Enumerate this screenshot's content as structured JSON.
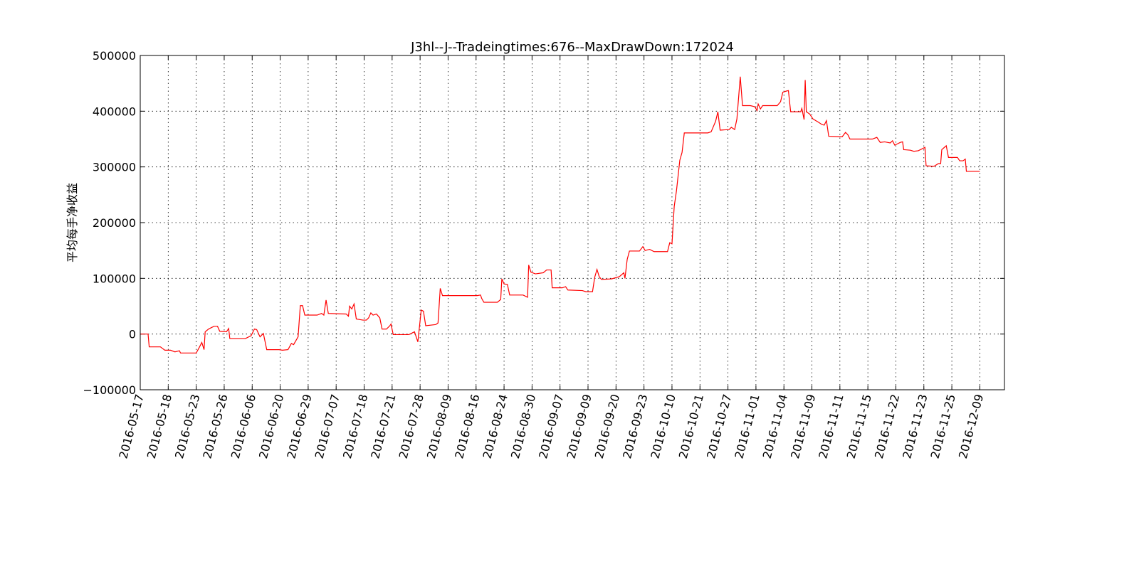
{
  "chart_data": {
    "type": "line",
    "title": "J3hl--J--Tradeingtimes:676--MaxDrawDown:172024",
    "y_label": "平均每手净收益",
    "xlim": [
      0,
      772
    ],
    "ylim": [
      -100000,
      500000
    ],
    "yticks": [
      {
        "value": -100000,
        "label": "−100000"
      },
      0,
      100000,
      200000,
      300000,
      400000,
      500000
    ],
    "xticks": [
      {
        "value": 0,
        "label": "2016-05-17"
      },
      {
        "value": 25,
        "label": "2016-05-18"
      },
      {
        "value": 50,
        "label": "2016-05-23"
      },
      {
        "value": 75,
        "label": "2016-05-26"
      },
      {
        "value": 100,
        "label": "2016-06-06"
      },
      {
        "value": 125,
        "label": "2016-06-20"
      },
      {
        "value": 150,
        "label": "2016-06-29"
      },
      {
        "value": 175,
        "label": "2016-07-07"
      },
      {
        "value": 200,
        "label": "2016-07-18"
      },
      {
        "value": 225,
        "label": "2016-07-21"
      },
      {
        "value": 250,
        "label": "2016-07-28"
      },
      {
        "value": 275,
        "label": "2016-08-09"
      },
      {
        "value": 300,
        "label": "2016-08-16"
      },
      {
        "value": 325,
        "label": "2016-08-24"
      },
      {
        "value": 350,
        "label": "2016-08-30"
      },
      {
        "value": 375,
        "label": "2016-09-07"
      },
      {
        "value": 400,
        "label": "2016-09-09"
      },
      {
        "value": 425,
        "label": "2016-09-20"
      },
      {
        "value": 450,
        "label": "2016-09-23"
      },
      {
        "value": 475,
        "label": "2016-10-10"
      },
      {
        "value": 500,
        "label": "2016-10-21"
      },
      {
        "value": 525,
        "label": "2016-10-27"
      },
      {
        "value": 550,
        "label": "2016-11-01"
      },
      {
        "value": 575,
        "label": "2016-11-04"
      },
      {
        "value": 600,
        "label": "2016-11-09"
      },
      {
        "value": 625,
        "label": "2016-11-11"
      },
      {
        "value": 650,
        "label": "2016-11-15"
      },
      {
        "value": 675,
        "label": "2016-11-22"
      },
      {
        "value": 700,
        "label": "2016-11-23"
      },
      {
        "value": 725,
        "label": "2016-11-25"
      },
      {
        "value": 750,
        "label": "2016-12-09"
      }
    ],
    "grid": true,
    "series": [
      {
        "color": "#ff0000",
        "x": [
          0,
          7,
          8,
          18,
          22,
          27,
          31,
          35,
          36,
          50,
          53,
          55,
          57,
          58,
          61,
          63,
          66,
          69,
          71,
          77,
          79,
          80,
          94,
          99,
          102,
          104,
          107,
          110,
          113,
          124,
          127,
          132,
          135,
          137,
          141,
          143,
          145,
          147,
          158,
          162,
          164,
          166,
          168,
          184,
          186,
          187,
          189,
          191,
          193,
          199,
          202,
          204,
          206,
          208,
          211,
          214,
          216,
          220,
          223,
          224,
          226,
          240,
          245,
          248,
          251,
          253,
          255,
          264,
          266,
          268,
          270,
          291,
          301,
          304,
          305,
          307,
          319,
          322,
          323,
          325,
          328,
          330,
          342,
          346,
          347,
          349,
          353,
          360,
          363,
          367,
          368,
          377,
          380,
          382,
          395,
          398,
          404,
          406,
          408,
          410,
          412,
          421,
          428,
          432,
          433,
          435,
          437,
          446,
          449,
          451,
          455,
          459,
          471,
          473,
          475,
          477,
          479,
          482,
          484,
          486,
          498,
          507,
          510,
          514,
          516,
          518,
          526,
          528,
          531,
          533,
          536,
          538,
          545,
          549,
          551,
          552,
          554,
          556,
          569,
          572,
          574,
          577,
          579,
          581,
          590,
          591,
          593,
          594,
          595,
          598,
          601,
          606,
          609,
          611,
          613,
          615,
          627,
          630,
          632,
          634,
          654,
          658,
          661,
          665,
          670,
          672,
          674,
          677,
          679,
          681,
          682,
          688,
          691,
          695,
          701,
          702,
          709,
          713,
          715,
          716,
          720,
          722,
          730,
          732,
          735,
          737,
          738,
          750
        ],
        "values": [
          0,
          0,
          -23000,
          -23000,
          -29000,
          -29000,
          -32000,
          -30000,
          -34000,
          -34000,
          -23000,
          -15000,
          -28000,
          4000,
          9000,
          11000,
          14000,
          14000,
          5000,
          4000,
          10000,
          -8000,
          -8000,
          -3000,
          9000,
          8000,
          -5000,
          1000,
          -28000,
          -28000,
          -29000,
          -28000,
          -17000,
          -19000,
          -5000,
          51000,
          51000,
          34000,
          34000,
          37000,
          34000,
          61000,
          37000,
          36000,
          32000,
          50000,
          45000,
          54000,
          27000,
          25000,
          25000,
          29000,
          38000,
          34000,
          36000,
          29000,
          9000,
          9000,
          15000,
          18000,
          -1000,
          -1000,
          4000,
          -14000,
          43000,
          41000,
          15000,
          17000,
          20000,
          82000,
          69000,
          69000,
          69000,
          70000,
          64000,
          57000,
          57000,
          62000,
          99000,
          90000,
          89000,
          70000,
          70000,
          66000,
          124000,
          111000,
          108000,
          110000,
          115000,
          115000,
          83000,
          83000,
          85000,
          79000,
          78000,
          76000,
          76000,
          102000,
          116000,
          103000,
          98000,
          99000,
          103000,
          110000,
          100000,
          134000,
          149000,
          149000,
          157000,
          150000,
          152000,
          148000,
          148000,
          164000,
          162000,
          229000,
          257000,
          312000,
          326000,
          361000,
          361000,
          361000,
          363000,
          382000,
          399000,
          366000,
          367000,
          371000,
          367000,
          386000,
          462000,
          410000,
          410000,
          408000,
          401000,
          413000,
          404000,
          410000,
          410000,
          417000,
          434000,
          436000,
          437000,
          399000,
          399000,
          405000,
          385000,
          456000,
          399000,
          395000,
          386000,
          380000,
          376000,
          375000,
          383000,
          355000,
          354000,
          362000,
          358000,
          350000,
          350000,
          353000,
          344000,
          345000,
          343000,
          347000,
          339000,
          342000,
          344000,
          345000,
          331000,
          330000,
          328000,
          329000,
          335000,
          302000,
          301000,
          306000,
          306000,
          331000,
          338000,
          317000,
          317000,
          311000,
          311000,
          314000,
          292000,
          292000
        ]
      }
    ]
  }
}
